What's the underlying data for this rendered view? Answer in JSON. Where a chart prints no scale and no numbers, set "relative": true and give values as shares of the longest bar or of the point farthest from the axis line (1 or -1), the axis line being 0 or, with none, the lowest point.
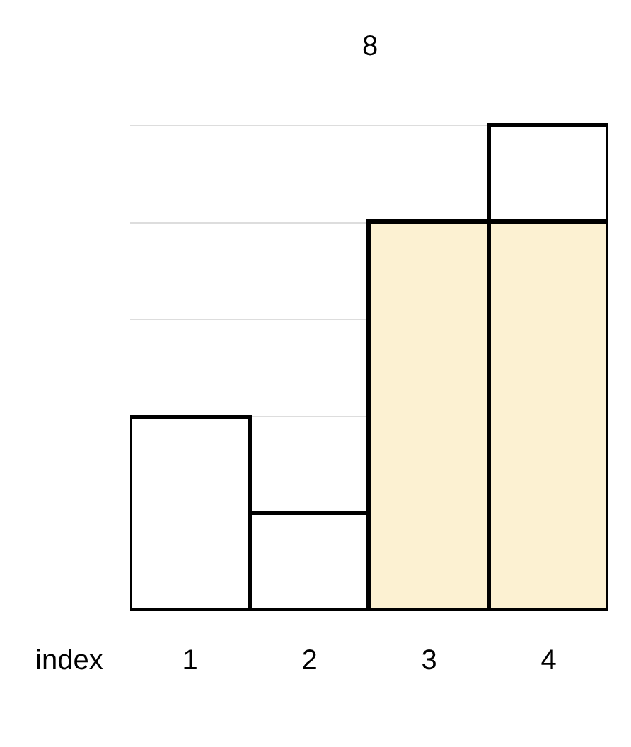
{
  "chart_data": {
    "type": "bar",
    "relative": true,
    "stacked": true,
    "categories": [
      "1",
      "2",
      "3",
      "4"
    ],
    "xlabel": "index",
    "annotations": [
      "8"
    ],
    "grid": "y",
    "legend": false,
    "series": [
      {
        "color": "#fcf1d2",
        "values": [
          null,
          null,
          0.8,
          0.8
        ]
      },
      {
        "color": "#ffffff",
        "values": [
          0.4,
          0.2,
          null,
          0.2
        ]
      }
    ]
  }
}
